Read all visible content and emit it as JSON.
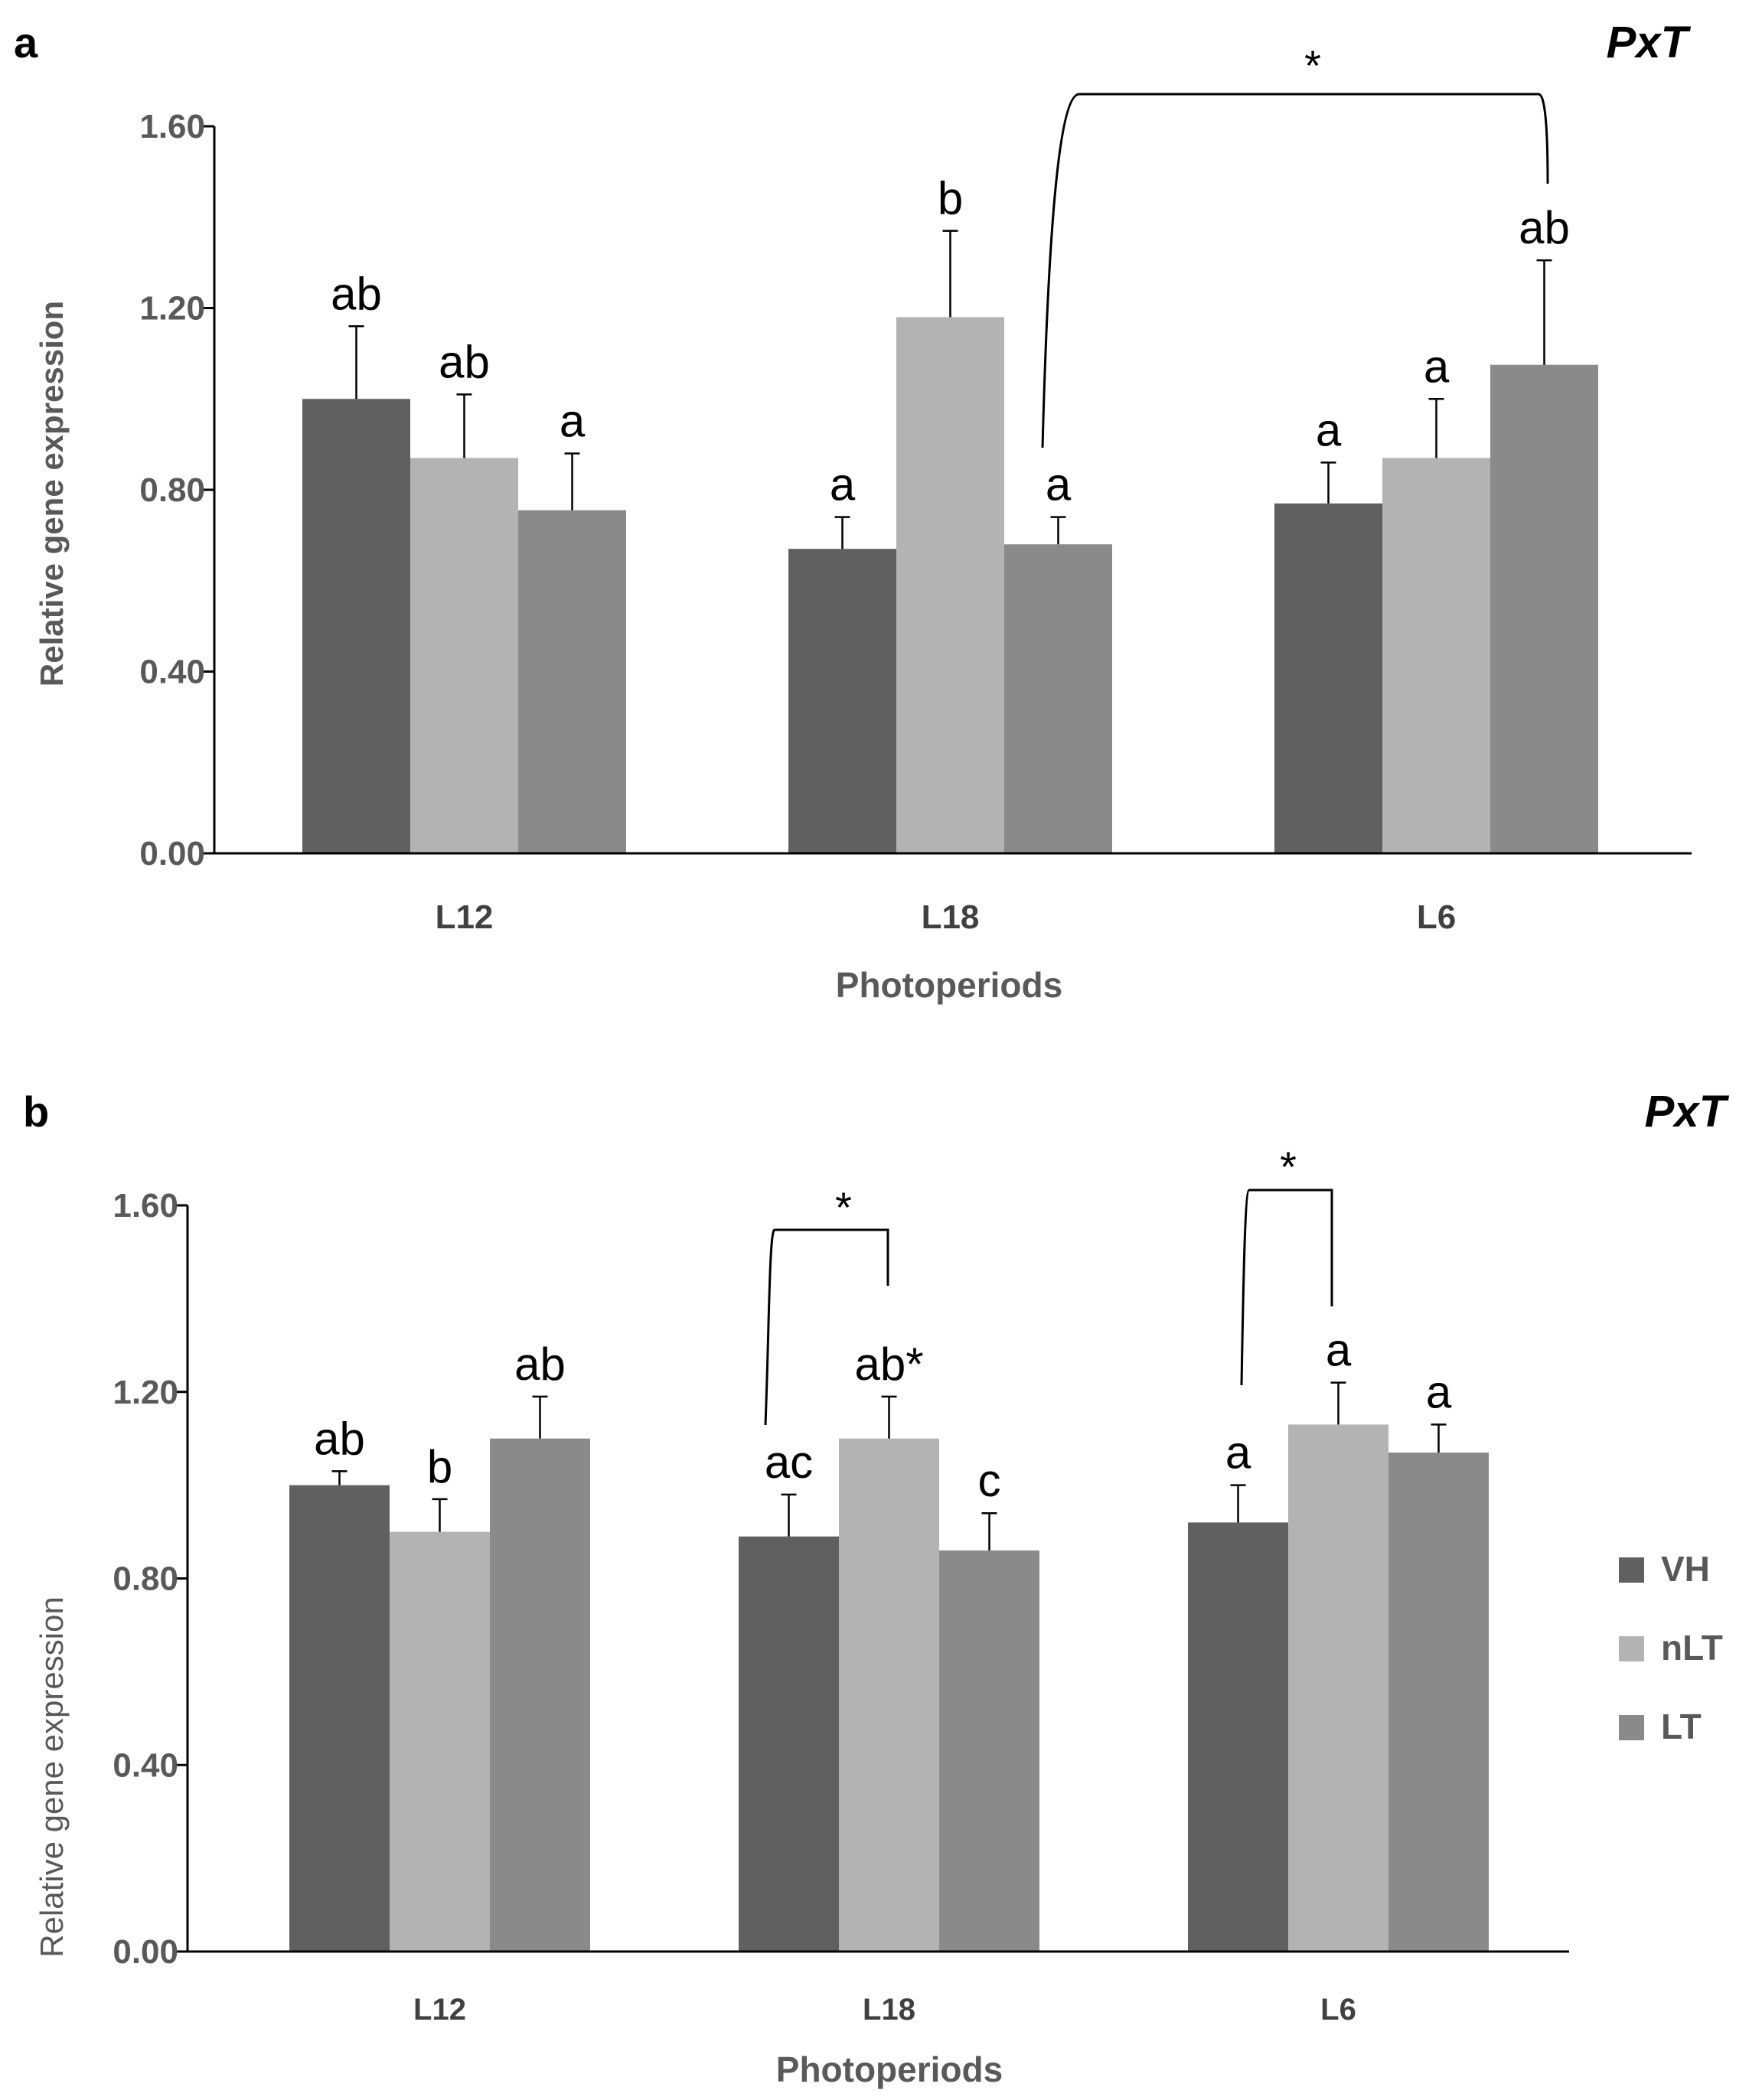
{
  "chart_data": [
    {
      "type": "bar",
      "panel_label": "a",
      "gene_label": "PxT",
      "xlabel": "Photoperiods",
      "ylabel": "Relative gene expression",
      "ylim": [
        0,
        1.6
      ],
      "yticks": [
        "0.00",
        "0.40",
        "0.80",
        "1.20",
        "1.60"
      ],
      "ytick_values": [
        0,
        0.4,
        0.8,
        1.2,
        1.6
      ],
      "categories": [
        "L12",
        "L18",
        "L6"
      ],
      "series": [
        {
          "name": "VH",
          "color": "#606060",
          "values": [
            1.0,
            0.67,
            0.77
          ],
          "errors": [
            0.16,
            0.07,
            0.09
          ],
          "letters": [
            "ab",
            "a",
            "a"
          ]
        },
        {
          "name": "nLT",
          "color": "#b3b3b3",
          "values": [
            0.87,
            1.18,
            0.87
          ],
          "errors": [
            0.14,
            0.19,
            0.13
          ],
          "letters": [
            "ab",
            "b",
            "a"
          ]
        },
        {
          "name": "LT",
          "color": "#8a8a8a",
          "values": [
            0.755,
            0.68,
            1.075
          ],
          "errors": [
            0.125,
            0.06,
            0.23
          ],
          "letters": [
            "a",
            "a",
            "ab"
          ]
        }
      ],
      "significance": [
        {
          "label": "*",
          "from": {
            "category": 1,
            "series": 2
          },
          "to": {
            "category": 2,
            "series": 2
          }
        }
      ]
    },
    {
      "type": "bar",
      "panel_label": "b",
      "gene_label": "PxT",
      "xlabel": "Photoperiods",
      "ylabel": "Relative gene expression",
      "ylim": [
        0,
        1.6
      ],
      "yticks": [
        "0.00",
        "0.40",
        "0.80",
        "1.20",
        "1.60"
      ],
      "ytick_values": [
        0,
        0.4,
        0.8,
        1.2,
        1.6
      ],
      "categories": [
        "L12",
        "L18",
        "L6"
      ],
      "legend": {
        "position": "right",
        "entries": [
          "VH",
          "nLT",
          "LT"
        ]
      },
      "series": [
        {
          "name": "VH",
          "color": "#606060",
          "values": [
            1.0,
            0.89,
            0.92
          ],
          "errors": [
            0.03,
            0.09,
            0.08
          ],
          "letters": [
            "ab",
            "ac",
            "a"
          ]
        },
        {
          "name": "nLT",
          "color": "#b3b3b3",
          "values": [
            0.9,
            1.1,
            1.13
          ],
          "errors": [
            0.07,
            0.09,
            0.09
          ],
          "letters": [
            "b",
            "ab*",
            "a"
          ]
        },
        {
          "name": "LT",
          "color": "#8a8a8a",
          "values": [
            1.1,
            0.86,
            1.07
          ],
          "errors": [
            0.09,
            0.08,
            0.06
          ],
          "letters": [
            "ab",
            "c",
            "a"
          ]
        }
      ],
      "significance": [
        {
          "label": "*",
          "from": {
            "category": 1,
            "series": 0
          },
          "to": {
            "category": 1,
            "series": 1
          }
        },
        {
          "label": "*",
          "from": {
            "category": 2,
            "series": 0
          },
          "to": {
            "category": 2,
            "series": 1
          }
        }
      ]
    }
  ]
}
